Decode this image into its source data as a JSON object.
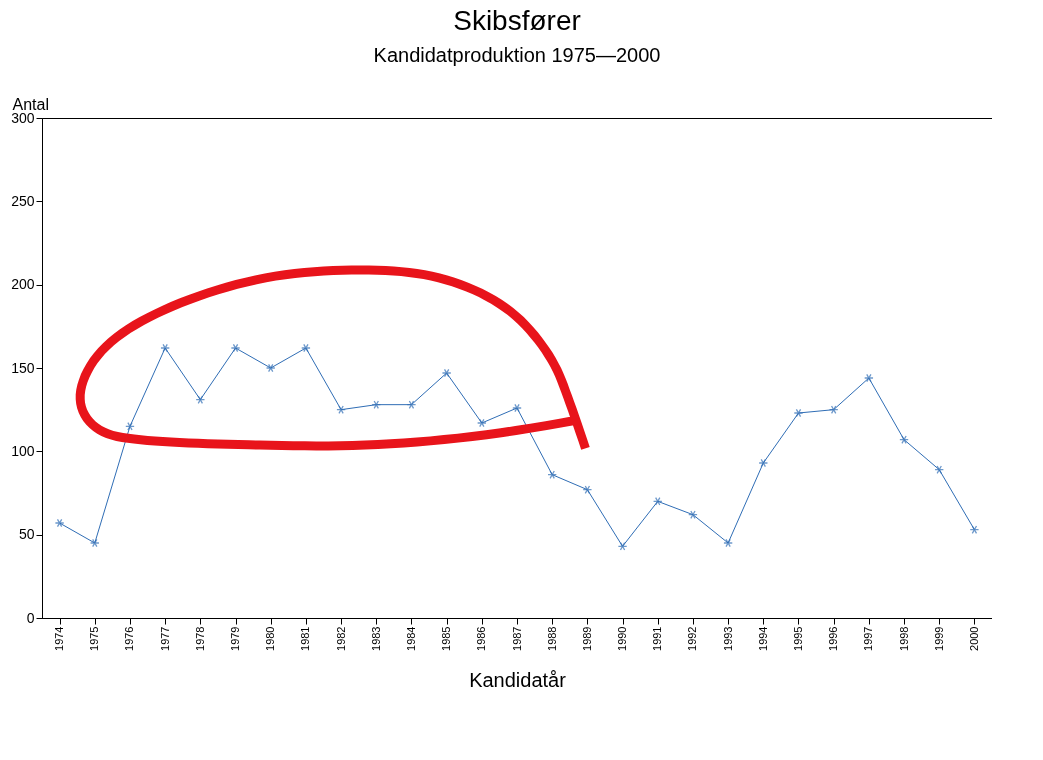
{
  "chart_data": {
    "type": "line",
    "title": "Skibsfører",
    "subtitle": "Kandidatproduktion  1975—2000",
    "xlabel": "Kandidatår",
    "ylabel": "Antal",
    "categories": [
      "1974",
      "1975",
      "1976",
      "1977",
      "1978",
      "1979",
      "1980",
      "1981",
      "1982",
      "1983",
      "1984",
      "1985",
      "1986",
      "1987",
      "1988",
      "1989",
      "1990",
      "1991",
      "1992",
      "1993",
      "1994",
      "1995",
      "1996",
      "1997",
      "1998",
      "1999",
      "2000"
    ],
    "series": [
      {
        "color": "#2f6db5",
        "values": [
          57,
          45,
          115,
          162,
          131,
          162,
          150,
          162,
          125,
          128,
          128,
          147,
          117,
          126,
          86,
          77,
          43,
          70,
          62,
          45,
          93,
          123,
          125,
          144,
          107,
          89,
          53
        ]
      }
    ],
    "ylim": [
      0,
      300
    ],
    "yticks": [
      0,
      50,
      100,
      150,
      200,
      250,
      300
    ],
    "grid": false,
    "legend": false,
    "marker": "cross",
    "line_style": "solid"
  }
}
